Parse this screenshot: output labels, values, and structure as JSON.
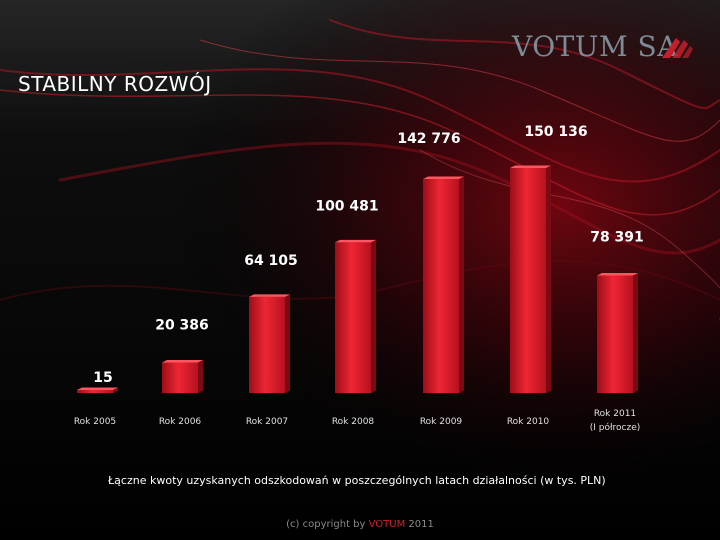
{
  "header": {
    "title": "STABILNY ROZWÓJ",
    "logo_text": "VOTUM SA"
  },
  "chart_data": {
    "type": "bar",
    "categories": [
      "Rok 2005",
      "Rok 2006",
      "Rok 2007",
      "Rok 2008",
      "Rok 2009",
      "Rok 2010",
      "Rok 2011 (I półrocze)"
    ],
    "values": [
      15,
      20386,
      64105,
      100481,
      142776,
      150136,
      78391
    ],
    "value_labels": [
      "15",
      "20 386",
      "64 105",
      "100 481",
      "142 776",
      "150 136",
      "78 391"
    ],
    "xlabel": "Łączne kwoty uzyskanych odszkodowań w poszczególnych latach działalności (w tys. PLN)",
    "ylabel": "",
    "ylim": [
      0,
      150136
    ],
    "grid": false,
    "legend": "none"
  },
  "footer": {
    "copyright_prefix": "(c) copyright by ",
    "copyright_brand": "VOTUM",
    "copyright_suffix": " 2011"
  },
  "colors": {
    "accent": "#d3202f",
    "bar": "#e0222f",
    "background": "#000000",
    "logo": "#7d8b94"
  }
}
